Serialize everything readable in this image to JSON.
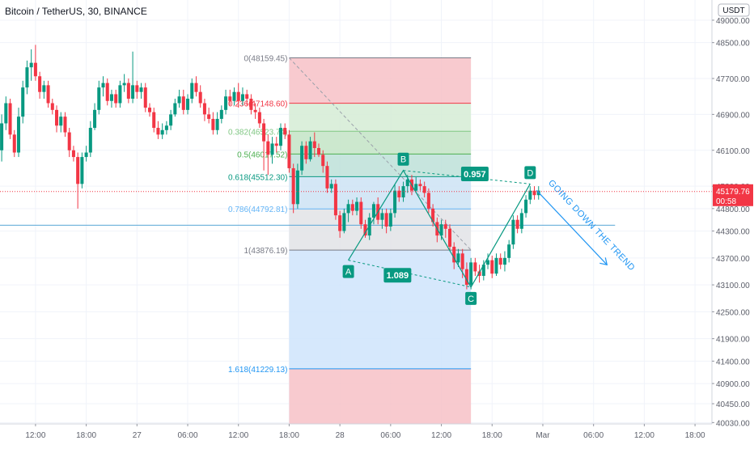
{
  "header": {
    "title": "Bitcoin / TetherUS, 30, BINANCE"
  },
  "chart_data": {
    "type": "candlestick",
    "title": "Bitcoin / TetherUS, 30, BINANCE",
    "currency_label": "USDT",
    "last_price": {
      "value": "45179.76",
      "countdown": "00:58"
    },
    "y_ticks": [
      49000,
      48500,
      47700,
      46900,
      46100,
      45300,
      44800,
      44300,
      43700,
      43100,
      42500,
      41900,
      41400,
      40900,
      40450,
      40030
    ],
    "y_tick_labels": [
      "49000.00",
      "48500.00",
      "47700.00",
      "46900.00",
      "46100.00",
      "45300.00",
      "44800.00",
      "44300.00",
      "43700.00",
      "43100.00",
      "42500.00",
      "41900.00",
      "41400.00",
      "40900.00",
      "40450.00",
      "40030.00"
    ],
    "x_ticks": [
      {
        "label": "12:00",
        "h": 12
      },
      {
        "label": "18:00",
        "h": 18
      },
      {
        "label": "27",
        "h": 24
      },
      {
        "label": "06:00",
        "h": 30
      },
      {
        "label": "12:00",
        "h": 36
      },
      {
        "label": "18:00",
        "h": 42
      },
      {
        "label": "28",
        "h": 48
      },
      {
        "label": "06:00",
        "h": 54
      },
      {
        "label": "12:00",
        "h": 60
      },
      {
        "label": "18:00",
        "h": 66
      },
      {
        "label": "Mar",
        "h": 72
      },
      {
        "label": "06:00",
        "h": 78
      },
      {
        "label": "12:00",
        "h": 84
      },
      {
        "label": "18:00",
        "h": 90
      }
    ],
    "candles": [
      [
        8.0,
        46100,
        46700,
        45850,
        46900
      ],
      [
        8.5,
        46700,
        47150,
        46550,
        47300
      ],
      [
        9.0,
        47150,
        46450,
        46350,
        47250
      ],
      [
        9.5,
        46450,
        46050,
        45950,
        46550
      ],
      [
        10.0,
        46050,
        46850,
        45950,
        47050
      ],
      [
        10.5,
        46850,
        47500,
        46700,
        47650
      ],
      [
        11.0,
        47500,
        47950,
        47350,
        48100
      ],
      [
        11.5,
        47950,
        48050,
        47650,
        48350
      ],
      [
        12.0,
        48050,
        47750,
        47650,
        48450
      ],
      [
        12.5,
        47750,
        47400,
        47250,
        47850
      ],
      [
        13.0,
        47400,
        47550,
        47250,
        47650
      ],
      [
        13.5,
        47550,
        47150,
        47050,
        47650
      ],
      [
        14.0,
        47150,
        47000,
        46900,
        47250
      ],
      [
        14.5,
        47000,
        46650,
        46500,
        47100
      ],
      [
        15.0,
        46650,
        46850,
        46500,
        46950
      ],
      [
        15.5,
        46850,
        46500,
        46400,
        46950
      ],
      [
        16.0,
        46500,
        46100,
        45950,
        46600
      ],
      [
        16.5,
        46100,
        45950,
        45850,
        46200
      ],
      [
        17.0,
        45950,
        45350,
        44800,
        46050
      ],
      [
        17.5,
        45350,
        45950,
        45250,
        46050
      ],
      [
        18.0,
        45950,
        46050,
        45850,
        46200
      ],
      [
        18.5,
        46050,
        46600,
        45950,
        46750
      ],
      [
        19.0,
        46600,
        47000,
        46550,
        47150
      ],
      [
        19.5,
        47000,
        47500,
        46900,
        47650
      ],
      [
        20.0,
        47500,
        47600,
        47300,
        47750
      ],
      [
        20.5,
        47600,
        47200,
        47100,
        47700
      ],
      [
        21.0,
        47200,
        47350,
        47050,
        47450
      ],
      [
        21.5,
        47350,
        47150,
        47050,
        47450
      ],
      [
        22.0,
        47150,
        47550,
        47050,
        47650
      ],
      [
        22.5,
        47550,
        47600,
        47400,
        47800
      ],
      [
        23.0,
        47600,
        47250,
        47150,
        47700
      ],
      [
        23.5,
        47250,
        47550,
        47150,
        48300
      ],
      [
        24.0,
        47550,
        47400,
        47250,
        47650
      ],
      [
        24.5,
        47400,
        47500,
        47250,
        47600
      ],
      [
        25.0,
        47500,
        47050,
        46950,
        47600
      ],
      [
        25.5,
        47050,
        46950,
        46850,
        47150
      ],
      [
        26.0,
        46950,
        46600,
        46500,
        47050
      ],
      [
        26.5,
        46600,
        46450,
        46350,
        46750
      ],
      [
        27.0,
        46450,
        46550,
        46350,
        46700
      ],
      [
        27.5,
        46550,
        46650,
        46450,
        46750
      ],
      [
        28.0,
        46650,
        46900,
        46550,
        47000
      ],
      [
        28.5,
        46900,
        47150,
        46850,
        47250
      ],
      [
        29.0,
        47150,
        47300,
        47050,
        47450
      ],
      [
        29.5,
        47300,
        47000,
        46900,
        47450
      ],
      [
        30.0,
        47000,
        47250,
        46900,
        47350
      ],
      [
        30.5,
        47250,
        47600,
        47150,
        47700
      ],
      [
        31.0,
        47600,
        47400,
        47300,
        47750
      ],
      [
        31.5,
        47400,
        47150,
        47050,
        47550
      ],
      [
        32.0,
        47150,
        46900,
        46750,
        47250
      ],
      [
        32.5,
        46900,
        46800,
        46700,
        47050
      ],
      [
        33.0,
        46800,
        46550,
        46450,
        46950
      ],
      [
        33.5,
        46550,
        46800,
        46450,
        46950
      ],
      [
        34.0,
        46800,
        47000,
        46700,
        47100
      ],
      [
        34.5,
        47000,
        47300,
        46900,
        47450
      ],
      [
        35.0,
        47300,
        47200,
        47100,
        47450
      ],
      [
        35.5,
        47200,
        47400,
        47100,
        47500
      ],
      [
        36.0,
        47400,
        47200,
        47050,
        47600
      ],
      [
        36.5,
        47200,
        47350,
        47100,
        47500
      ],
      [
        37.0,
        47350,
        47250,
        47100,
        47450
      ],
      [
        37.5,
        47250,
        47000,
        46900,
        47350
      ],
      [
        38.0,
        47000,
        46950,
        46800,
        47150
      ],
      [
        38.5,
        46950,
        46700,
        46600,
        47050
      ],
      [
        39.0,
        46700,
        46300,
        45650,
        46800
      ],
      [
        39.5,
        46300,
        46000,
        45550,
        46450
      ],
      [
        40.0,
        46000,
        46250,
        45800,
        46400
      ],
      [
        40.5,
        46250,
        46200,
        46050,
        46400
      ],
      [
        41.0,
        46200,
        46600,
        46100,
        46700
      ],
      [
        41.5,
        46600,
        46450,
        46350,
        46700
      ],
      [
        42.0,
        46450,
        45700,
        45600,
        46550
      ],
      [
        42.5,
        45700,
        44900,
        44700,
        45800
      ],
      [
        43.0,
        44900,
        45650,
        44800,
        45800
      ],
      [
        43.5,
        45650,
        46200,
        45550,
        46300
      ],
      [
        44.0,
        46200,
        45900,
        45800,
        46300
      ],
      [
        44.5,
        45900,
        46300,
        45850,
        46400
      ],
      [
        45.0,
        46300,
        46150,
        45950,
        46500
      ],
      [
        45.5,
        46150,
        46000,
        45950,
        46250
      ],
      [
        46.0,
        46000,
        45750,
        45600,
        46100
      ],
      [
        46.5,
        45750,
        45250,
        45150,
        45850
      ],
      [
        47.0,
        45250,
        45350,
        45150,
        45450
      ],
      [
        47.5,
        45350,
        44650,
        44550,
        45450
      ],
      [
        48.0,
        44650,
        44300,
        44150,
        44750
      ],
      [
        48.5,
        44300,
        44700,
        44250,
        44800
      ],
      [
        49.0,
        44700,
        44900,
        44500,
        45000
      ],
      [
        49.5,
        44900,
        44750,
        44650,
        45000
      ],
      [
        50.0,
        44750,
        44950,
        44650,
        45050
      ],
      [
        50.5,
        44950,
        44450,
        44350,
        45050
      ],
      [
        51.0,
        44450,
        44200,
        44150,
        44550
      ],
      [
        51.5,
        44200,
        44600,
        44100,
        44700
      ],
      [
        52.0,
        44600,
        44900,
        44450,
        44950
      ],
      [
        52.5,
        44900,
        44550,
        44450,
        45050
      ],
      [
        53.0,
        44550,
        44700,
        44350,
        44800
      ],
      [
        53.5,
        44700,
        44400,
        44250,
        44800
      ],
      [
        54.0,
        44400,
        44700,
        44300,
        44800
      ],
      [
        54.5,
        44700,
        45200,
        44600,
        45350
      ],
      [
        55.0,
        45200,
        45050,
        44950,
        45300
      ],
      [
        55.5,
        45050,
        45300,
        44950,
        45400
      ],
      [
        56.0,
        45300,
        45450,
        45150,
        45550
      ],
      [
        56.5,
        45450,
        45200,
        45100,
        45550
      ],
      [
        57.0,
        45200,
        45350,
        45150,
        45500
      ],
      [
        57.5,
        45350,
        45300,
        45200,
        45450
      ],
      [
        58.0,
        45300,
        45150,
        45050,
        45400
      ],
      [
        58.5,
        45150,
        44800,
        44700,
        45250
      ],
      [
        59.0,
        44800,
        44500,
        44400,
        44900
      ],
      [
        59.5,
        44500,
        44200,
        44050,
        44600
      ],
      [
        60.0,
        44200,
        44450,
        44100,
        44550
      ],
      [
        60.5,
        44450,
        44350,
        44150,
        44550
      ],
      [
        61.0,
        44350,
        43950,
        43850,
        44450
      ],
      [
        61.5,
        43950,
        43600,
        43450,
        44050
      ],
      [
        62.0,
        43600,
        43800,
        43500,
        43900
      ],
      [
        62.5,
        43800,
        43450,
        43250,
        43900
      ],
      [
        63.0,
        43450,
        43100,
        43000,
        43600
      ],
      [
        63.5,
        43100,
        43600,
        43000,
        43700
      ],
      [
        64.0,
        43600,
        43400,
        43300,
        43700
      ],
      [
        64.5,
        43400,
        43300,
        43150,
        43550
      ],
      [
        65.0,
        43300,
        43550,
        43200,
        43650
      ],
      [
        65.5,
        43550,
        43650,
        43450,
        43800
      ],
      [
        66.0,
        43650,
        43350,
        43250,
        43750
      ],
      [
        66.5,
        43350,
        43700,
        43300,
        43800
      ],
      [
        67.0,
        43700,
        43550,
        43450,
        43800
      ],
      [
        67.5,
        43550,
        43700,
        43400,
        43850
      ],
      [
        68.0,
        43700,
        44000,
        43600,
        44100
      ],
      [
        68.5,
        44000,
        44550,
        43900,
        44650
      ],
      [
        69.0,
        44550,
        44350,
        44250,
        44650
      ],
      [
        69.5,
        44350,
        44700,
        44250,
        44800
      ],
      [
        70.0,
        44700,
        45000,
        44600,
        45100
      ],
      [
        70.5,
        45000,
        45200,
        44900,
        45300
      ],
      [
        71.0,
        45200,
        45100,
        45000,
        45300
      ],
      [
        71.5,
        45100,
        45200,
        45000,
        45300
      ]
    ],
    "fibonacci": {
      "levels": [
        {
          "ratio": "0",
          "price": "48159.45",
          "value": 48159.45,
          "label_color": "#787b86"
        },
        {
          "ratio": "0.236",
          "price": "47148.60",
          "value": 47148.6,
          "label_color": "#f23645"
        },
        {
          "ratio": "0.382",
          "price": "46523.74",
          "value": 46523.74,
          "label_color": "#81c784"
        },
        {
          "ratio": "0.5",
          "price": "46017.52",
          "value": 46017.52,
          "label_color": "#4caf50"
        },
        {
          "ratio": "0.618",
          "price": "45512.30",
          "value": 45512.3,
          "label_color": "#089981"
        },
        {
          "ratio": "0.786",
          "price": "44792.81",
          "value": 44792.81,
          "label_color": "#64b5f6"
        },
        {
          "ratio": "1",
          "price": "43876.19",
          "value": 43876.19,
          "label_color": "#787b86"
        },
        {
          "ratio": "1.618",
          "price": "41229.13",
          "value": 41229.13,
          "label_color": "#2196f3"
        }
      ],
      "zone_colors": [
        "#f7c1c7",
        "#d5ecd5",
        "#c3e4c5",
        "#bde0d8",
        "#cde3f4",
        "#e2e3e6",
        "#cfe4fb",
        "#f7c1c7"
      ],
      "start_hour": 42,
      "end_hour": 63.5,
      "extension_bottom": 40000
    },
    "abcd_pattern": {
      "points": [
        {
          "label": "A",
          "hour": 49,
          "price": 43650
        },
        {
          "label": "B",
          "hour": 55.5,
          "price": 45650
        },
        {
          "label": "C",
          "hour": 63.5,
          "price": 43050
        },
        {
          "label": "D",
          "hour": 70.5,
          "price": 45350
        }
      ],
      "ratio_ab": "1.089",
      "ratio_bc": "0.957",
      "color": "#089981"
    },
    "horizontal_line": {
      "price": 44430,
      "color": "#5aa7d6"
    },
    "annotation": {
      "text": "GOING DOWN THE TREND",
      "color": "#2196f3"
    },
    "colors": {
      "up": "#089981",
      "down": "#f23645",
      "price_tag": "#f23645",
      "grid": "#f0f3fa"
    },
    "grid": true,
    "xlim": [
      7.8,
      92
    ],
    "ylim": [
      40000,
      49450
    ]
  }
}
